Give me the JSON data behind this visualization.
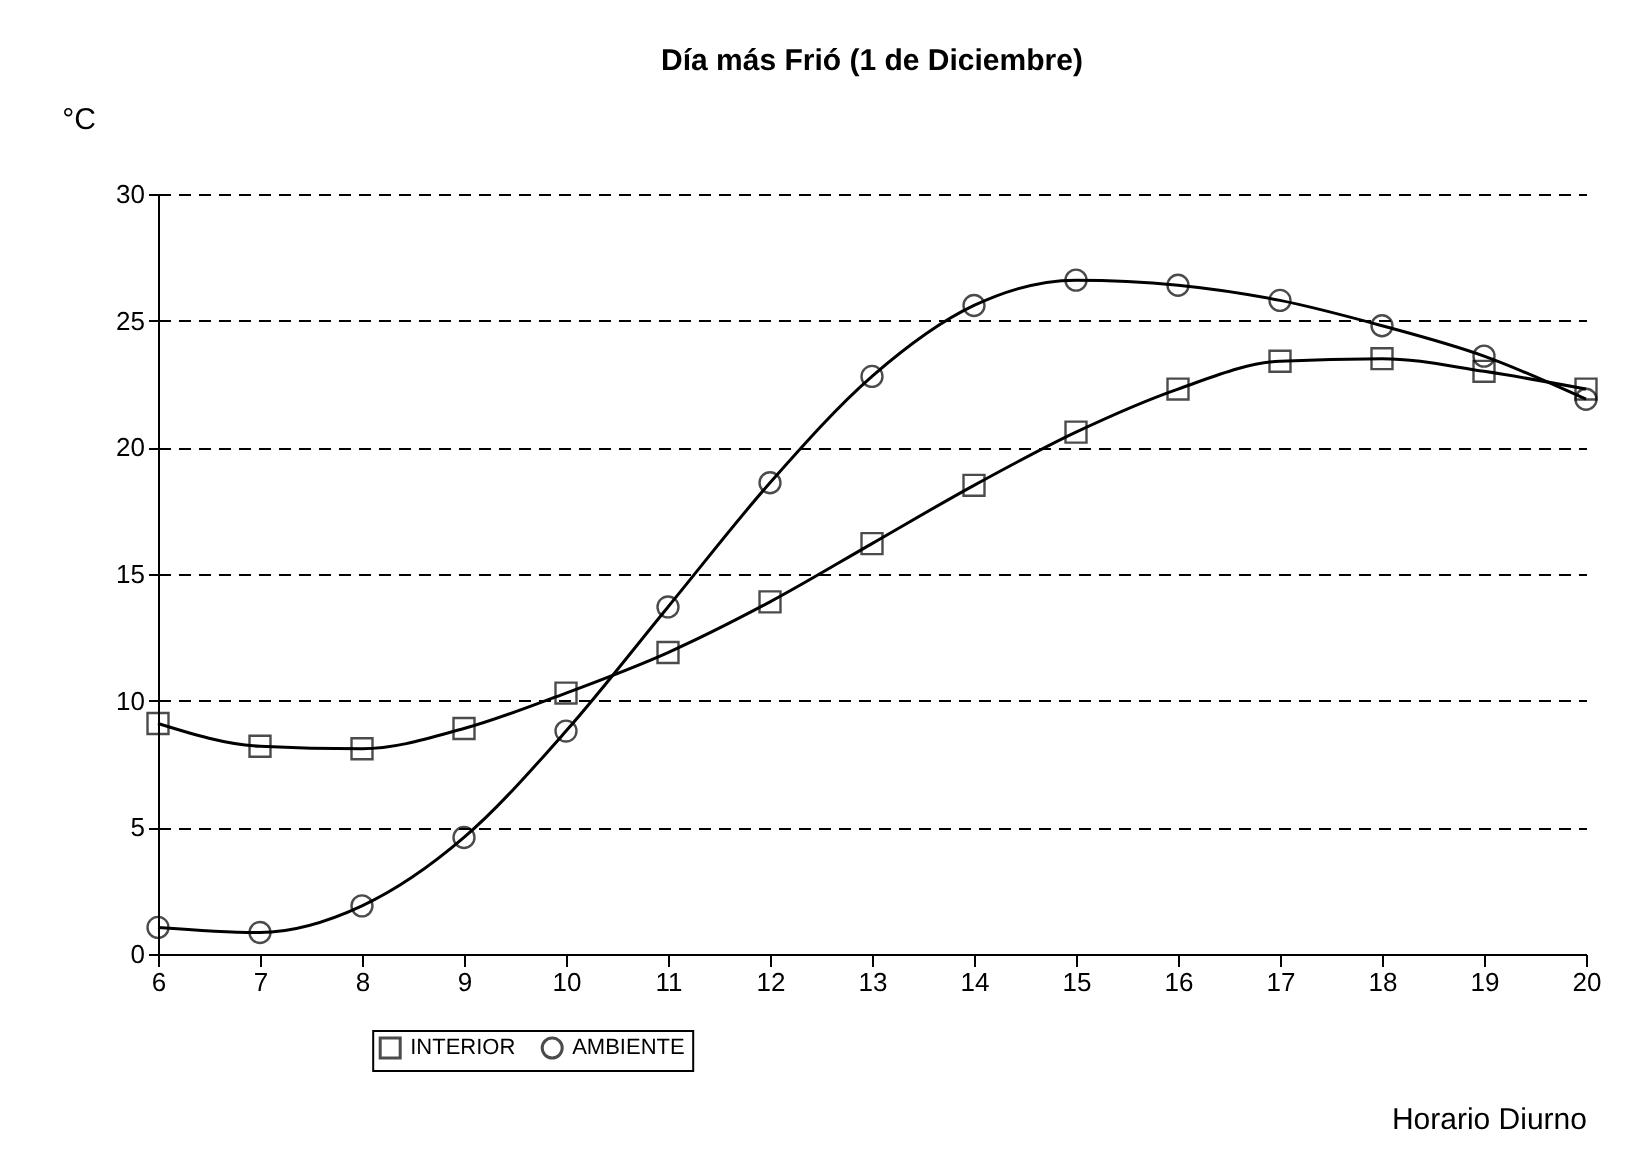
{
  "chart_data": {
    "type": "line",
    "title": "Día más Frió  (1 de Diciembre)",
    "xlabel": "Horario Diurno",
    "ylabel": "°C",
    "x": [
      6,
      7,
      8,
      9,
      10,
      11,
      12,
      13,
      14,
      15,
      16,
      17,
      18,
      19,
      20
    ],
    "series": [
      {
        "name": "INTERIOR",
        "color": "#000000",
        "marker": "square",
        "values": [
          9.1,
          8.2,
          8.1,
          8.9,
          10.3,
          11.9,
          13.9,
          16.2,
          18.5,
          20.6,
          22.3,
          23.4,
          23.5,
          23.0,
          22.3
        ]
      },
      {
        "name": "AMBIENTE",
        "color": "#000000",
        "marker": "circle",
        "values": [
          1.05,
          0.85,
          1.9,
          4.6,
          8.8,
          13.7,
          18.6,
          22.8,
          25.6,
          26.6,
          26.4,
          25.8,
          24.8,
          23.6,
          21.9
        ]
      }
    ],
    "xlim": [
      6,
      20
    ],
    "xticks": [
      6,
      7,
      8,
      9,
      10,
      11,
      12,
      13,
      14,
      15,
      16,
      17,
      18,
      19,
      20
    ],
    "ylim": [
      0,
      30
    ],
    "yticks": [
      0,
      5,
      10,
      15,
      20,
      25,
      30
    ],
    "grid": "y",
    "legend": "bottom",
    "line_style": "solid"
  }
}
